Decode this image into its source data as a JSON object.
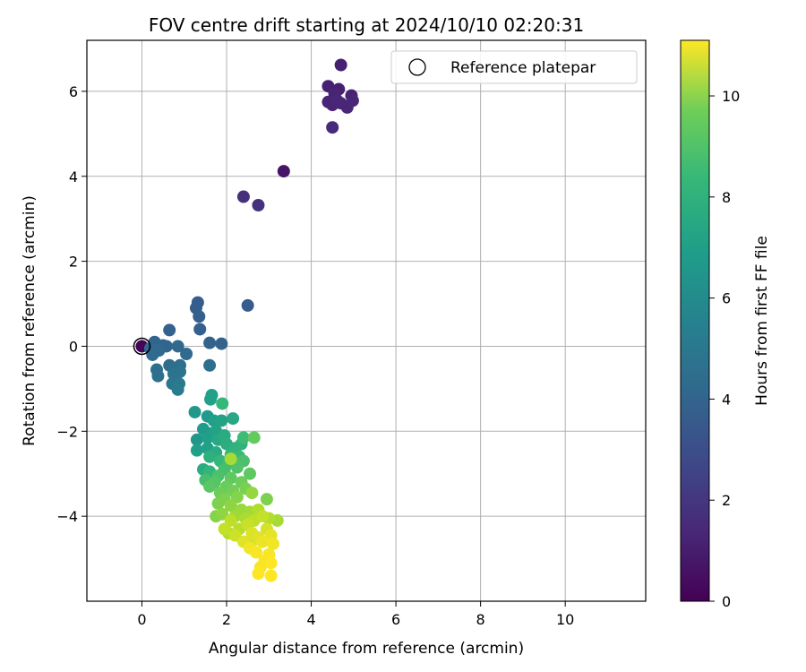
{
  "chart_data": {
    "type": "scatter",
    "title": "FOV centre drift starting at 2024/10/10 02:20:31",
    "xlabel": "Angular distance from reference (arcmin)",
    "ylabel": "Rotation from reference (arcmin)",
    "xlim": [
      -1.3,
      11.9
    ],
    "ylim": [
      -6.0,
      7.2
    ],
    "xticks": [
      0,
      2,
      4,
      6,
      8,
      10
    ],
    "yticks": [
      -4,
      -2,
      0,
      2,
      4,
      6
    ],
    "grid": true,
    "legend": {
      "position": "top-right",
      "entries": [
        "Reference platepar"
      ]
    },
    "reference_point": {
      "x": 0,
      "y": 0,
      "label": "Reference platepar"
    },
    "colorbar": {
      "label": "Hours from first FF file",
      "min": 0,
      "max": 11.1,
      "ticks": [
        0,
        2,
        4,
        6,
        8,
        10
      ],
      "colormap": "viridis"
    },
    "points": [
      [
        0.0,
        0.0,
        0.1
      ],
      [
        3.35,
        4.12,
        0.6
      ],
      [
        4.7,
        6.62,
        1.0
      ],
      [
        4.4,
        6.12,
        1.0
      ],
      [
        4.55,
        5.95,
        1.1
      ],
      [
        4.65,
        6.05,
        1.0
      ],
      [
        4.95,
        5.9,
        1.1
      ],
      [
        4.4,
        5.75,
        1.1
      ],
      [
        4.6,
        5.8,
        1.2
      ],
      [
        4.5,
        5.68,
        1.1
      ],
      [
        4.85,
        5.62,
        1.2
      ],
      [
        4.98,
        5.78,
        1.2
      ],
      [
        4.7,
        5.72,
        1.2
      ],
      [
        4.5,
        5.15,
        1.3
      ],
      [
        2.4,
        3.52,
        1.5
      ],
      [
        2.75,
        3.32,
        1.6
      ],
      [
        2.5,
        0.96,
        3.2
      ],
      [
        1.32,
        1.03,
        3.3
      ],
      [
        1.28,
        0.9,
        3.3
      ],
      [
        1.35,
        0.7,
        3.4
      ],
      [
        1.37,
        0.4,
        3.4
      ],
      [
        0.65,
        0.38,
        3.5
      ],
      [
        1.6,
        0.08,
        3.5
      ],
      [
        1.88,
        0.06,
        3.5
      ],
      [
        0.3,
        0.1,
        3.6
      ],
      [
        0.5,
        0.02,
        3.6
      ],
      [
        0.58,
        0.0,
        3.6
      ],
      [
        0.85,
        0.0,
        3.7
      ],
      [
        0.2,
        -0.05,
        3.7
      ],
      [
        0.4,
        -0.1,
        3.8
      ],
      [
        0.25,
        -0.2,
        3.8
      ],
      [
        1.05,
        -0.18,
        3.8
      ],
      [
        0.65,
        -0.45,
        3.9
      ],
      [
        0.9,
        -0.45,
        4.0
      ],
      [
        0.8,
        -0.55,
        4.0
      ],
      [
        1.6,
        -0.45,
        4.0
      ],
      [
        0.35,
        -0.55,
        4.1
      ],
      [
        0.38,
        -0.7,
        4.1
      ],
      [
        0.9,
        -0.6,
        4.2
      ],
      [
        0.75,
        -0.65,
        4.2
      ],
      [
        0.72,
        -0.88,
        4.4
      ],
      [
        0.88,
        -0.88,
        4.5
      ],
      [
        0.85,
        -1.02,
        4.6
      ],
      [
        1.65,
        -1.15,
        6.3
      ],
      [
        1.62,
        -1.25,
        6.3
      ],
      [
        1.25,
        -1.55,
        5.9
      ],
      [
        1.55,
        -1.65,
        6.0
      ],
      [
        1.7,
        -1.75,
        6.2
      ],
      [
        1.88,
        -1.75,
        6.4
      ],
      [
        2.15,
        -1.7,
        6.6
      ],
      [
        1.9,
        -1.35,
        7.4
      ],
      [
        1.45,
        -1.95,
        6.0
      ],
      [
        1.65,
        -2.05,
        6.1
      ],
      [
        1.55,
        -2.15,
        6.2
      ],
      [
        1.75,
        -2.0,
        6.4
      ],
      [
        1.3,
        -2.2,
        5.8
      ],
      [
        1.95,
        -2.1,
        6.8
      ],
      [
        1.8,
        -2.2,
        6.6
      ],
      [
        1.55,
        -2.4,
        6.3
      ],
      [
        1.3,
        -2.45,
        6.2
      ],
      [
        2.4,
        -2.15,
        7.6
      ],
      [
        2.35,
        -2.3,
        7.2
      ],
      [
        2.0,
        -2.3,
        6.9
      ],
      [
        2.2,
        -2.4,
        7.1
      ],
      [
        1.75,
        -2.5,
        6.8
      ],
      [
        2.65,
        -2.15,
        8.4
      ],
      [
        2.1,
        -2.55,
        7.3
      ],
      [
        2.3,
        -2.6,
        7.5
      ],
      [
        1.6,
        -2.6,
        7.0
      ],
      [
        1.45,
        -2.9,
        6.8
      ],
      [
        1.85,
        -2.7,
        7.4
      ],
      [
        2.05,
        -2.75,
        7.6
      ],
      [
        2.4,
        -2.7,
        7.9
      ],
      [
        2.25,
        -2.85,
        8.0
      ],
      [
        1.6,
        -2.95,
        7.3
      ],
      [
        1.95,
        -2.9,
        7.8
      ],
      [
        2.55,
        -3.0,
        8.3
      ],
      [
        1.8,
        -3.05,
        7.9
      ],
      [
        2.1,
        -3.1,
        8.3
      ],
      [
        1.5,
        -3.15,
        7.8
      ],
      [
        1.72,
        -3.2,
        8.1
      ],
      [
        2.35,
        -3.2,
        8.6
      ],
      [
        2.0,
        -3.3,
        8.5
      ],
      [
        2.15,
        -3.4,
        8.7
      ],
      [
        1.85,
        -3.45,
        8.6
      ],
      [
        1.6,
        -3.3,
        8.2
      ],
      [
        2.45,
        -3.35,
        8.8
      ],
      [
        1.95,
        -3.6,
        8.9
      ],
      [
        2.25,
        -3.55,
        9.0
      ],
      [
        1.8,
        -3.7,
        8.9
      ],
      [
        2.1,
        -3.75,
        9.2
      ],
      [
        2.1,
        -2.65,
        9.6
      ],
      [
        2.6,
        -3.45,
        9.3
      ],
      [
        2.95,
        -3.6,
        8.9
      ],
      [
        2.55,
        -3.9,
        9.5
      ],
      [
        2.35,
        -3.85,
        9.4
      ],
      [
        1.75,
        -4.0,
        9.0
      ],
      [
        1.9,
        -3.95,
        9.2
      ],
      [
        2.2,
        -4.0,
        9.5
      ],
      [
        2.45,
        -4.05,
        9.7
      ],
      [
        2.75,
        -3.85,
        9.8
      ],
      [
        2.65,
        -4.1,
        10.0
      ],
      [
        2.85,
        -4.0,
        10.1
      ],
      [
        3.0,
        -4.05,
        9.8
      ],
      [
        3.2,
        -4.1,
        9.6
      ],
      [
        2.3,
        -4.3,
        9.9
      ],
      [
        2.5,
        -4.2,
        10.2
      ],
      [
        2.95,
        -4.3,
        10.4
      ],
      [
        2.05,
        -4.4,
        9.8
      ],
      [
        2.6,
        -4.4,
        10.5
      ],
      [
        2.2,
        -4.45,
        10.3
      ],
      [
        2.75,
        -4.5,
        10.6
      ],
      [
        3.05,
        -4.45,
        10.7
      ],
      [
        2.4,
        -4.6,
        10.6
      ],
      [
        2.85,
        -4.6,
        10.8
      ],
      [
        3.1,
        -4.65,
        10.9
      ],
      [
        2.55,
        -4.75,
        10.9
      ],
      [
        2.7,
        -4.85,
        11.0
      ],
      [
        3.0,
        -4.9,
        11.0
      ],
      [
        2.9,
        -5.05,
        11.0
      ],
      [
        3.05,
        -5.1,
        11.1
      ],
      [
        2.8,
        -5.2,
        11.0
      ],
      [
        2.75,
        -5.35,
        11.1
      ],
      [
        3.05,
        -5.4,
        11.1
      ],
      [
        2.65,
        -4.55,
        10.4
      ],
      [
        2.1,
        -4.1,
        10.0
      ],
      [
        1.95,
        -4.3,
        10.1
      ]
    ]
  }
}
